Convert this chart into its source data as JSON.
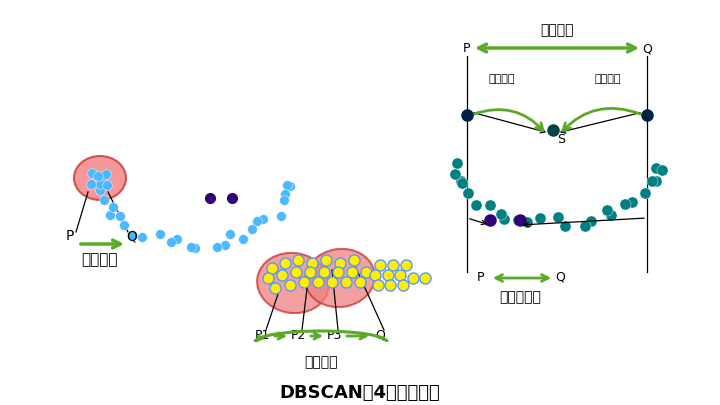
{
  "title": "DBSCAN中4种点的关系",
  "bg_color": "#ffffff",
  "blue_color": "#4db8ff",
  "teal_color": "#008080",
  "yellow_color": "#ffee00",
  "purple_color": "#330077",
  "red_fill": "#f08080",
  "red_edge": "#cc3333",
  "green_arrow": "#5aaa28",
  "label1": "密度直达",
  "label2": "密度可达",
  "label3": "密度相连",
  "label3b": "密度可达",
  "label4": "非密度相连",
  "title_fontsize": 13,
  "label_fontsize": 11,
  "small_fontsize": 9
}
